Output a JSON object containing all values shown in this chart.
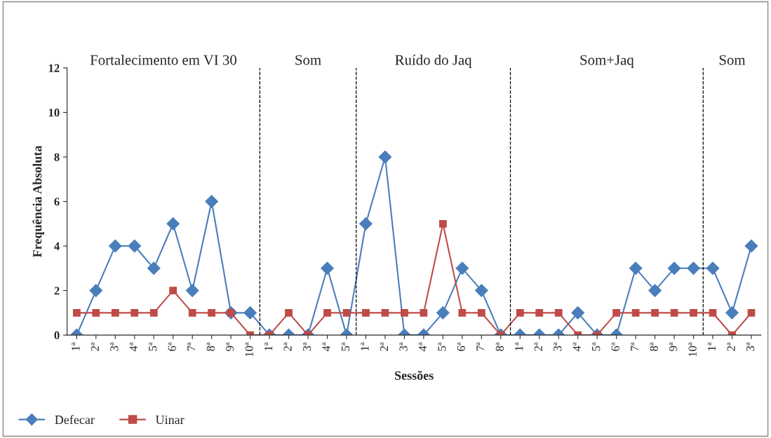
{
  "chart_data": {
    "type": "line",
    "xlabel": "Sessões",
    "ylabel": "Frequência Absoluta",
    "categories": [
      "1ª",
      "2ª",
      "3ª",
      "4ª",
      "5ª",
      "6ª",
      "7ª",
      "8ª",
      "9ª",
      "10ª",
      "1ª",
      "2ª",
      "3ª",
      "4ª",
      "5ª",
      "1ª",
      "2ª",
      "3ª",
      "4ª",
      "5ª",
      "6ª",
      "7ª",
      "8ª",
      "1ª",
      "2ª",
      "3ª",
      "4ª",
      "5ª",
      "6ª",
      "7ª",
      "8ª",
      "9ª",
      "10ª",
      "1ª",
      "2ª",
      "3ª"
    ],
    "series": [
      {
        "name": "Defecar",
        "color": "#4a7ebb",
        "marker": "diamond",
        "values": [
          0,
          2,
          4,
          4,
          3,
          5,
          2,
          6,
          1,
          1,
          0,
          0,
          0,
          3,
          0,
          5,
          8,
          0,
          0,
          1,
          3,
          2,
          0,
          0,
          0,
          0,
          1,
          0,
          0,
          3,
          2,
          3,
          3,
          3,
          1,
          4
        ]
      },
      {
        "name": "Uinar",
        "color": "#be4b48",
        "marker": "square",
        "values": [
          1,
          1,
          1,
          1,
          1,
          2,
          1,
          1,
          1,
          0,
          0,
          1,
          0,
          1,
          1,
          1,
          1,
          1,
          1,
          5,
          1,
          1,
          0,
          1,
          1,
          1,
          0,
          0,
          1,
          1,
          1,
          1,
          1,
          1,
          0,
          1
        ]
      }
    ],
    "ylim": [
      0,
      12
    ],
    "yticks": [
      0,
      2,
      4,
      6,
      8,
      10,
      12
    ],
    "grid": false,
    "legend": "bottom left",
    "line_style": "solid",
    "annotations": [
      "Fortalecimento em VI 30",
      "Som",
      "Ruído do Jaq",
      "Som+Jaq",
      "Som"
    ]
  }
}
